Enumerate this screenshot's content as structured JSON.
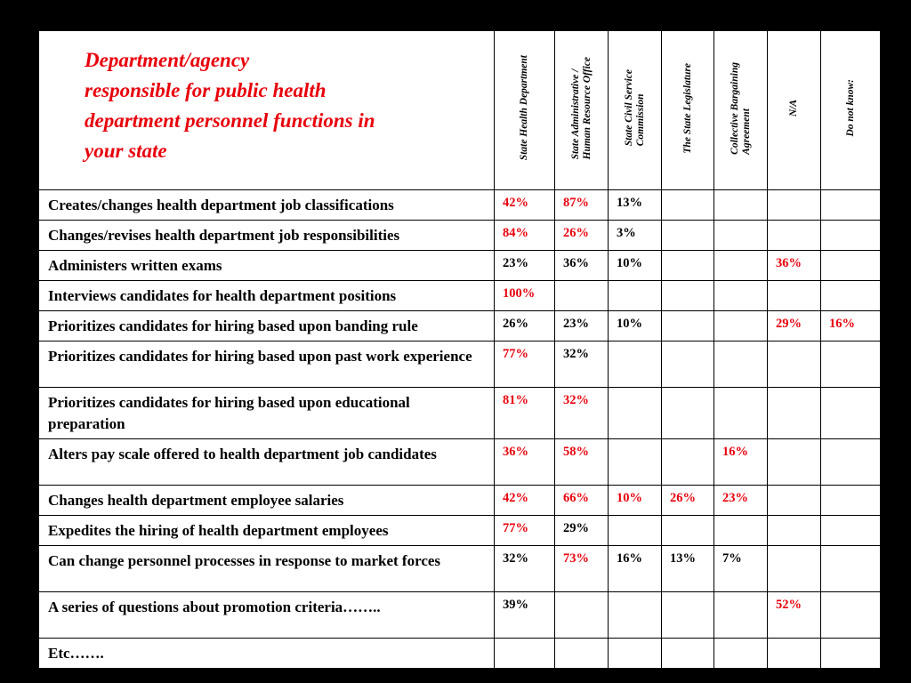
{
  "table": {
    "title": [
      "Department/agency",
      "responsible for public health",
      "department personnel functions in",
      "your state"
    ],
    "columns": [
      [
        "State Health Department"
      ],
      [
        "State  Administrative /",
        "Human Resource Office"
      ],
      [
        "State Civil Service",
        "Commission"
      ],
      [
        "The State Legislature"
      ],
      [
        "Collective Bargaining",
        "Agreement"
      ],
      [
        "N/A"
      ],
      [
        "Do not know:"
      ]
    ],
    "rows": [
      {
        "label": "Creates/changes health department job classifications",
        "cells": [
          {
            "text": "42%",
            "color": "red"
          },
          {
            "text": "87%",
            "color": "red"
          },
          {
            "text": "13%",
            "color": "black"
          },
          null,
          null,
          null,
          null
        ]
      },
      {
        "label": "Changes/revises health department job responsibilities",
        "cells": [
          {
            "text": "84%",
            "color": "red"
          },
          {
            "text": "26%",
            "color": "red"
          },
          {
            "text": "3%",
            "color": "black"
          },
          null,
          null,
          null,
          null
        ]
      },
      {
        "label": "Administers written exams",
        "cells": [
          {
            "text": "23%",
            "color": "black"
          },
          {
            "text": "36%",
            "color": "black"
          },
          {
            "text": "10%",
            "color": "black"
          },
          null,
          null,
          {
            "text": "36%",
            "color": "red"
          },
          null
        ]
      },
      {
        "label": "Interviews candidates for health department positions",
        "cells": [
          {
            "text": "100%",
            "color": "red"
          },
          null,
          null,
          null,
          null,
          null,
          null
        ]
      },
      {
        "label": "Prioritizes candidates for hiring based upon banding rule",
        "cells": [
          {
            "text": "26%",
            "color": "black"
          },
          {
            "text": "23%",
            "color": "black"
          },
          {
            "text": "10%",
            "color": "black"
          },
          null,
          null,
          {
            "text": "29%",
            "color": "red"
          },
          {
            "text": "16%",
            "color": "red"
          }
        ]
      },
      {
        "label": "Prioritizes candidates for hiring based upon past work experience",
        "cells": [
          {
            "text": "77%",
            "color": "red"
          },
          {
            "text": "32%",
            "color": "black"
          },
          null,
          null,
          null,
          null,
          null
        ]
      },
      {
        "label": "Prioritizes candidates for hiring based upon educational preparation",
        "cells": [
          {
            "text": "81%",
            "color": "red"
          },
          {
            "text": "32%",
            "color": "red"
          },
          null,
          null,
          null,
          null,
          null
        ]
      },
      {
        "label": "Alters pay scale offered to health department job candidates",
        "cells": [
          {
            "text": "36%",
            "color": "red"
          },
          {
            "text": "58%",
            "color": "red"
          },
          null,
          null,
          {
            "text": "16%",
            "color": "red"
          },
          null,
          null
        ]
      },
      {
        "label": "Changes health department employee salaries",
        "cells": [
          {
            "text": "42%",
            "color": "red"
          },
          {
            "text": "66%",
            "color": "red"
          },
          {
            "text": "10%",
            "color": "red"
          },
          {
            "text": "26%",
            "color": "red"
          },
          {
            "text": "23%",
            "color": "red"
          },
          null,
          null
        ]
      },
      {
        "label": "Expedites the hiring of  health department employees",
        "cells": [
          {
            "text": "77%",
            "color": "red"
          },
          {
            "text": "29%",
            "color": "black"
          },
          null,
          null,
          null,
          null,
          null
        ]
      },
      {
        "label": "Can change personnel processes in response to market forces",
        "cells": [
          {
            "text": "32%",
            "color": "black"
          },
          {
            "text": "73%",
            "color": "red"
          },
          {
            "text": "16%",
            "color": "black"
          },
          {
            "text": "13%",
            "color": "black"
          },
          {
            "text": "7%",
            "color": "black"
          },
          null,
          null
        ]
      },
      {
        "label": "A series of questions about promotion criteria……..",
        "cells": [
          {
            "text": "39%",
            "color": "black"
          },
          null,
          null,
          null,
          null,
          {
            "text": "52%",
            "color": "red"
          },
          null
        ]
      },
      {
        "label": "Etc…….",
        "cells": [
          null,
          null,
          null,
          null,
          null,
          null,
          null
        ]
      }
    ]
  }
}
